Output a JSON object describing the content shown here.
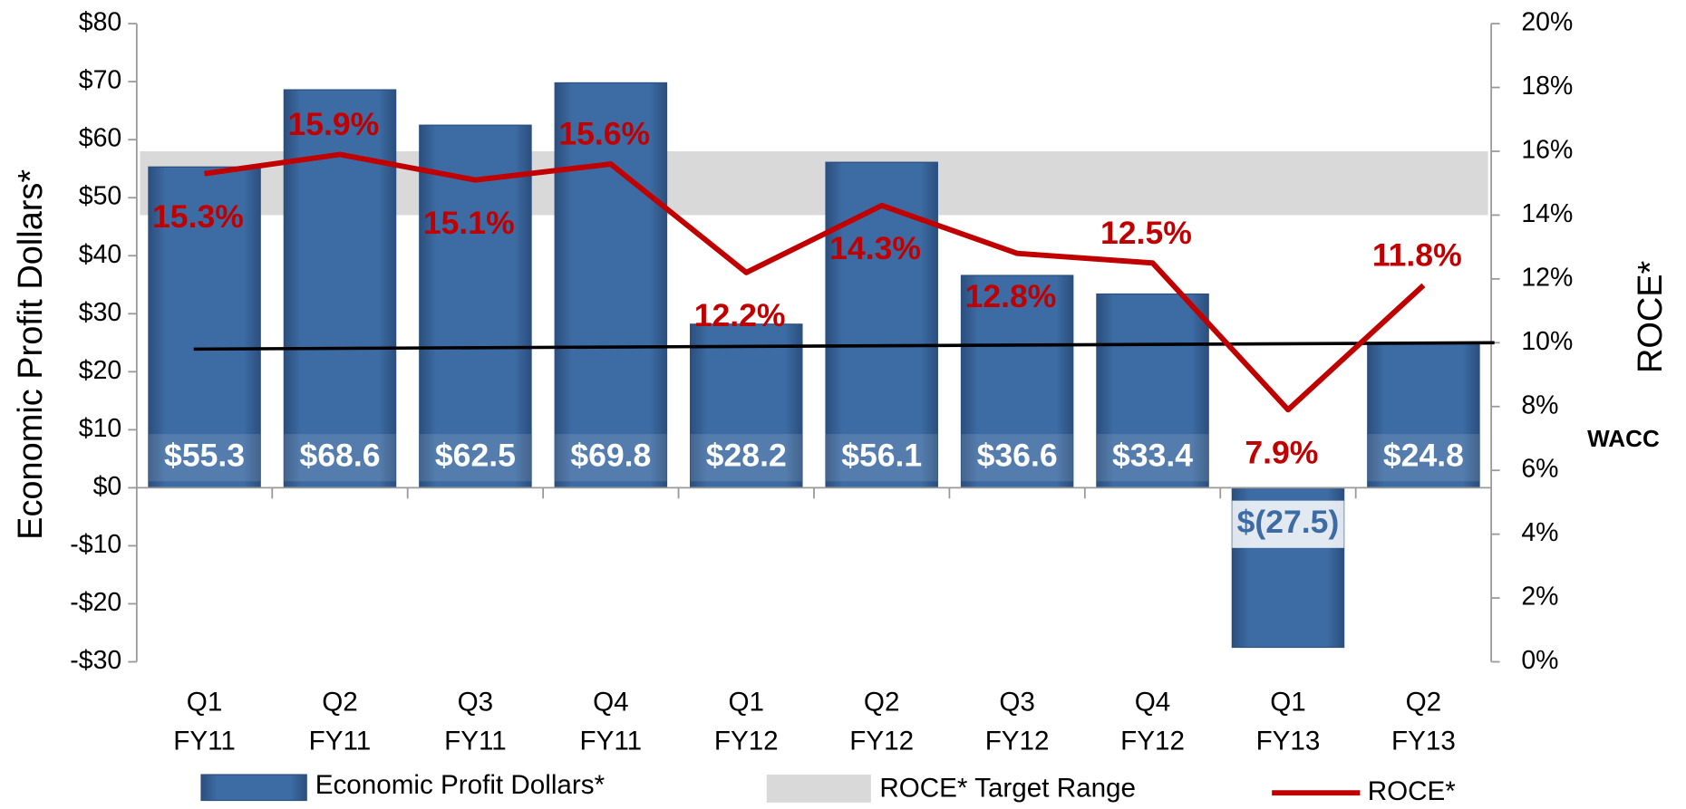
{
  "chart_data": {
    "type": "bar",
    "y_label": "Economic Profit Dollars*",
    "y2_label": "ROCE*",
    "categories": [
      [
        "Q1",
        "FY11"
      ],
      [
        "Q2",
        "FY11"
      ],
      [
        "Q3",
        "FY11"
      ],
      [
        "Q4",
        "FY11"
      ],
      [
        "Q1",
        "FY12"
      ],
      [
        "Q2",
        "FY12"
      ],
      [
        "Q3",
        "FY12"
      ],
      [
        "Q4",
        "FY12"
      ],
      [
        "Q1",
        "FY13"
      ],
      [
        "Q2",
        "FY13"
      ]
    ],
    "series": [
      {
        "name": "Economic Profit Dollars*",
        "type": "bar",
        "color": "#3d6ba3",
        "values": [
          55.3,
          68.6,
          62.5,
          69.8,
          28.2,
          56.1,
          36.6,
          33.4,
          -27.5,
          24.8
        ],
        "value_labels": [
          "$55.3",
          "$68.6",
          "$62.5",
          "$69.8",
          "$28.2",
          "$56.1",
          "$36.6",
          "$33.4",
          "$(27.5)",
          "$24.8"
        ]
      },
      {
        "name": "ROCE*",
        "type": "line",
        "axis": "y2",
        "color": "#c00000",
        "values": [
          15.3,
          15.9,
          15.1,
          15.6,
          12.2,
          14.3,
          12.8,
          12.5,
          7.9,
          11.8
        ],
        "value_labels": [
          "15.3%",
          "15.9%",
          "15.1%",
          "15.6%",
          "12.2%",
          "14.3%",
          "12.8%",
          "12.5%",
          "7.9%",
          "11.8%"
        ]
      }
    ],
    "target_range": {
      "name": "ROCE* Target Range",
      "color": "#d9d9d9",
      "values": [
        14,
        16
      ]
    },
    "wacc": {
      "name": "WACC",
      "color": "#000000",
      "values": [
        9.8,
        10
      ]
    },
    "ylim": [
      -30,
      80
    ],
    "yticks": [
      {
        "value": 80,
        "label": "$80"
      },
      {
        "value": 70,
        "label": "$70"
      },
      {
        "value": 60,
        "label": "$60"
      },
      {
        "value": 50,
        "label": "$50"
      },
      {
        "value": 40,
        "label": "$40"
      },
      {
        "value": 30,
        "label": "$30"
      },
      {
        "value": 20,
        "label": "$20"
      },
      {
        "value": 10,
        "label": "$10"
      },
      {
        "value": 0,
        "label": "$0"
      },
      {
        "value": -10,
        "label": "-$10"
      },
      {
        "value": -20,
        "label": "-$20"
      },
      {
        "value": -30,
        "label": "-$30"
      }
    ],
    "y2lim": [
      0,
      20
    ],
    "y2ticks": [
      {
        "value": 20,
        "label": "20%"
      },
      {
        "value": 18,
        "label": "18%"
      },
      {
        "value": 16,
        "label": "16%"
      },
      {
        "value": 14,
        "label": "14%"
      },
      {
        "value": 12,
        "label": "12%"
      },
      {
        "value": 10,
        "label": "10%"
      },
      {
        "value": 8,
        "label": "8%"
      },
      {
        "value": 6,
        "label": "6%"
      },
      {
        "value": 4,
        "label": "4%"
      },
      {
        "value": 2,
        "label": "2%"
      },
      {
        "value": 0,
        "label": "0%"
      }
    ]
  }
}
